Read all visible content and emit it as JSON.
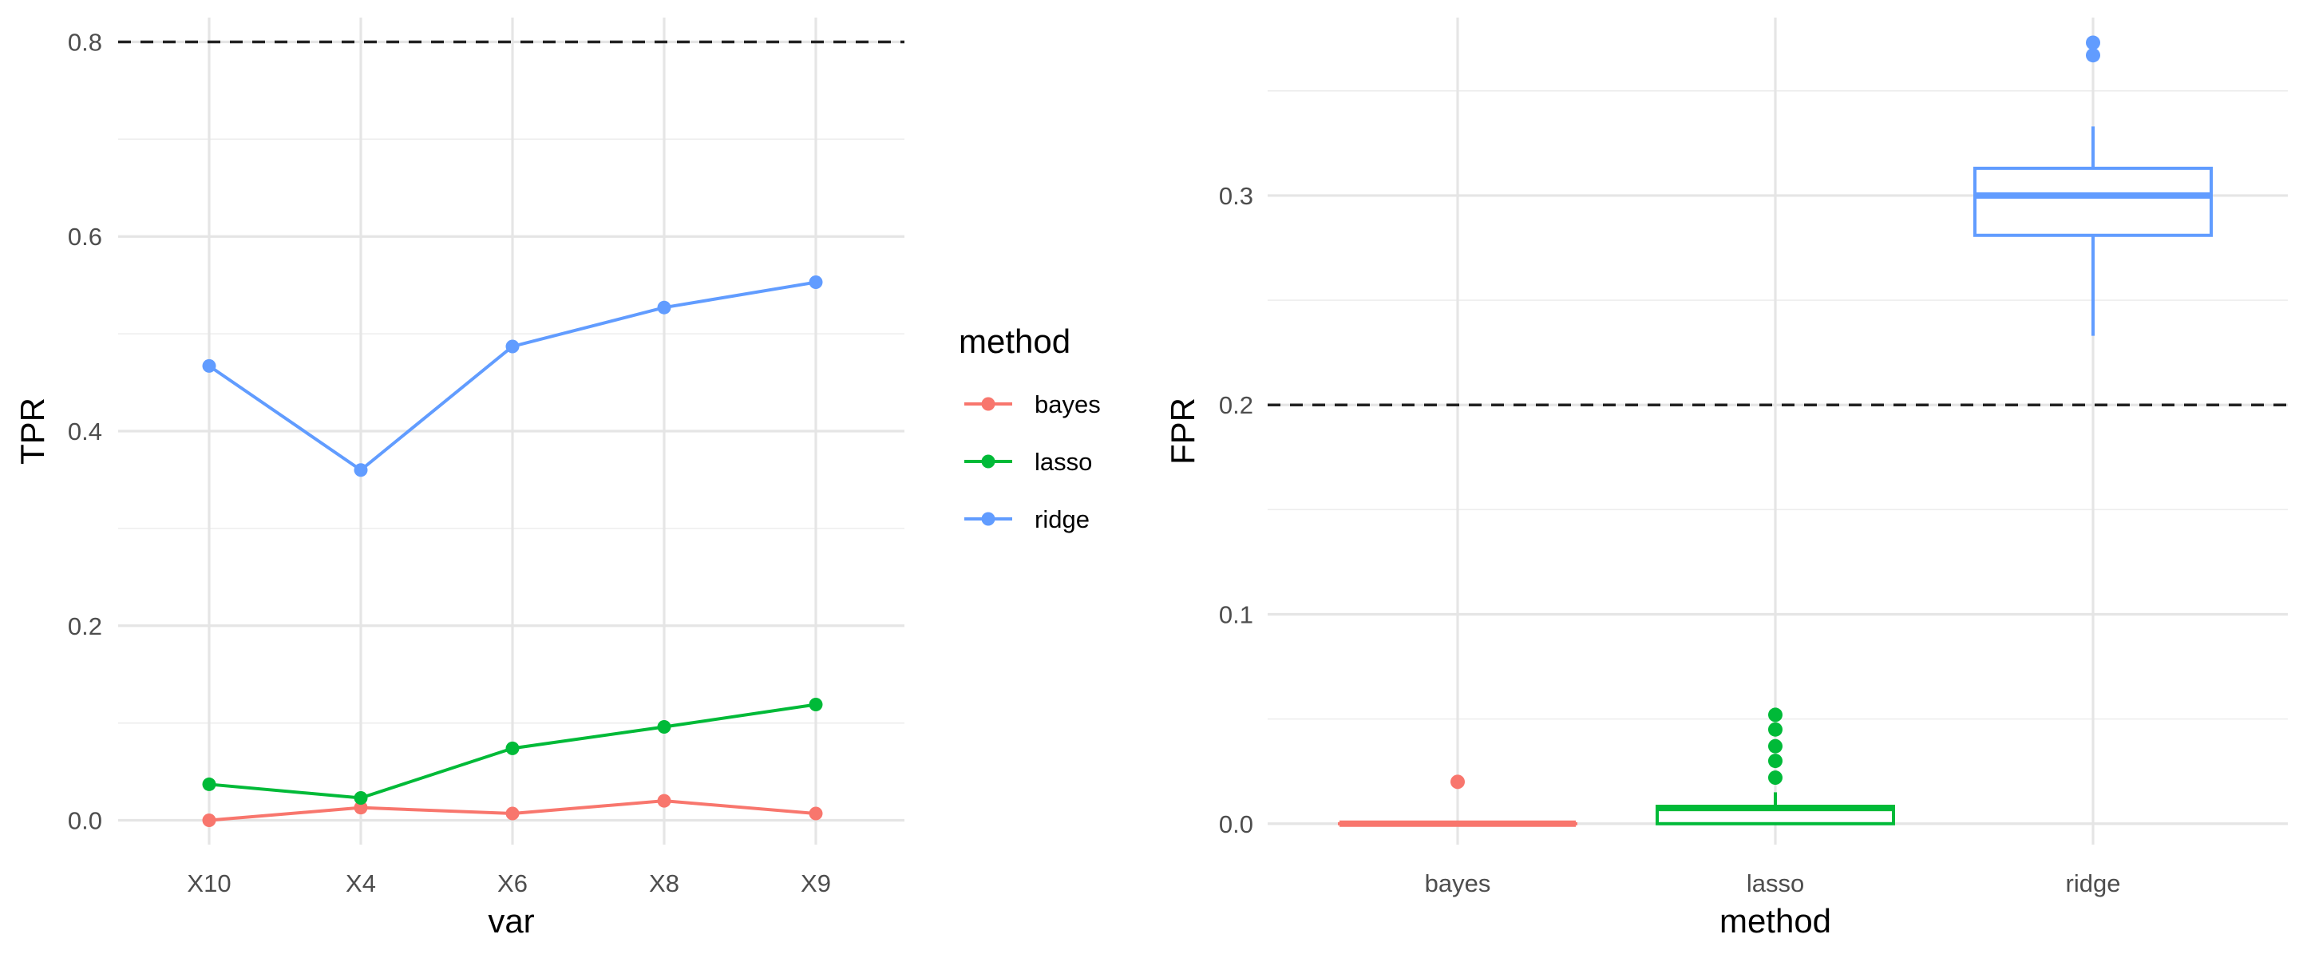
{
  "chart_data": [
    {
      "type": "line",
      "xlabel": "var",
      "ylabel": "TPR",
      "categories": [
        "X10",
        "X4",
        "X6",
        "X8",
        "X9"
      ],
      "ylim": [
        -0.025,
        0.825
      ],
      "yticks": [
        0.0,
        0.2,
        0.4,
        0.6,
        0.8
      ],
      "ytick_labels": [
        "0.0",
        "0.2",
        "0.4",
        "0.6",
        "0.8"
      ],
      "reference_line": 0.8,
      "grid": true,
      "series": [
        {
          "name": "bayes",
          "color": "#F8766D",
          "values": [
            0.0,
            0.013,
            0.007,
            0.02,
            0.007
          ]
        },
        {
          "name": "lasso",
          "color": "#00BA38",
          "values": [
            0.037,
            0.023,
            0.074,
            0.096,
            0.119
          ]
        },
        {
          "name": "ridge",
          "color": "#619CFF",
          "values": [
            0.467,
            0.36,
            0.487,
            0.527,
            0.553
          ]
        }
      ],
      "legend": {
        "title": "method",
        "placement": "right",
        "items": [
          "bayes",
          "lasso",
          "ridge"
        ]
      }
    },
    {
      "type": "box",
      "xlabel": "method",
      "ylabel": "FPR",
      "categories": [
        "bayes",
        "lasso",
        "ridge"
      ],
      "ylim": [
        -0.01,
        0.385
      ],
      "yticks": [
        0.0,
        0.1,
        0.2,
        0.3
      ],
      "ytick_labels": [
        "0.0",
        "0.1",
        "0.2",
        "0.3"
      ],
      "reference_line": 0.2,
      "grid": true,
      "boxes": [
        {
          "name": "bayes",
          "color": "#F8766D",
          "q1": 0.0,
          "median": 0.0,
          "q3": 0.0,
          "whisker_low": 0.0,
          "whisker_high": 0.0,
          "outliers": [
            0.02
          ]
        },
        {
          "name": "lasso",
          "color": "#00BA38",
          "q1": 0.0,
          "median": 0.0075,
          "q3": 0.0083,
          "whisker_low": 0.0,
          "whisker_high": 0.015,
          "outliers": [
            0.022,
            0.03,
            0.037,
            0.045,
            0.052
          ]
        },
        {
          "name": "ridge",
          "color": "#619CFF",
          "q1": 0.281,
          "median": 0.3,
          "q3": 0.313,
          "whisker_low": 0.233,
          "whisker_high": 0.333,
          "outliers": [
            0.367,
            0.373
          ]
        }
      ]
    }
  ]
}
